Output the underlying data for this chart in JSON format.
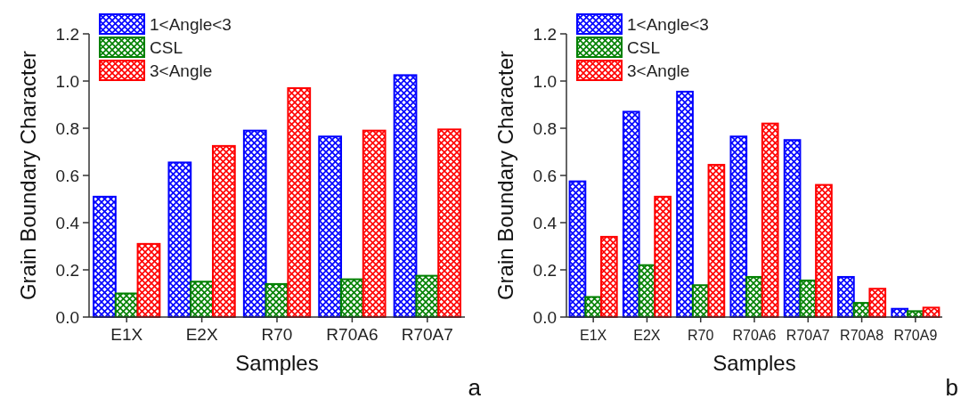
{
  "chart_data": [
    {
      "type": "bar",
      "xlabel": "Samples",
      "ylabel": "Grain Boundary Character",
      "categories": [
        "E1X",
        "E2X",
        "R70",
        "R70A6",
        "R70A7"
      ],
      "ylim": [
        0,
        1.2
      ],
      "yticks": [
        {
          "value": 0,
          "label": "0.0"
        },
        {
          "value": 0.2,
          "label": "0.2"
        },
        {
          "value": 0.4,
          "label": "0.4"
        },
        {
          "value": 0.6,
          "label": "0.6"
        },
        {
          "value": 0.8,
          "label": "0.8"
        },
        {
          "value": 1,
          "label": "1.0"
        },
        {
          "value": 1.2,
          "label": "1.2"
        }
      ],
      "legend": "top left",
      "annotations": [
        "a"
      ],
      "series": [
        {
          "name": "1<Angle<3",
          "color": "#0000ff",
          "values": [
            0.51,
            0.655,
            0.79,
            0.765,
            1.025
          ]
        },
        {
          "name": "CSL",
          "color": "#008000",
          "values": [
            0.1,
            0.15,
            0.14,
            0.16,
            0.175
          ]
        },
        {
          "name": "3<Angle",
          "color": "#ff0000",
          "values": [
            0.31,
            0.725,
            0.97,
            0.79,
            0.795
          ]
        }
      ]
    },
    {
      "type": "bar",
      "xlabel": "Samples",
      "ylabel": "Grain Boundary Character",
      "categories": [
        "E1X",
        "E2X",
        "R70",
        "R70A6",
        "R70A7",
        "R70A8",
        "R70A9"
      ],
      "ylim": [
        0,
        1.2
      ],
      "yticks": [
        {
          "value": 0,
          "label": "0.0"
        },
        {
          "value": 0.2,
          "label": "0.2"
        },
        {
          "value": 0.4,
          "label": "0.4"
        },
        {
          "value": 0.6,
          "label": "0.6"
        },
        {
          "value": 0.8,
          "label": "0.8"
        },
        {
          "value": 1,
          "label": "1.0"
        },
        {
          "value": 1.2,
          "label": "1.2"
        }
      ],
      "legend": "top left",
      "annotations": [
        "b"
      ],
      "series": [
        {
          "name": "1<Angle<3",
          "color": "#0000ff",
          "values": [
            0.575,
            0.87,
            0.955,
            0.765,
            0.75,
            0.17,
            0.035
          ]
        },
        {
          "name": "CSL",
          "color": "#008000",
          "values": [
            0.085,
            0.22,
            0.135,
            0.17,
            0.155,
            0.06,
            0.025
          ]
        },
        {
          "name": "3<Angle",
          "color": "#ff0000",
          "values": [
            0.34,
            0.51,
            0.645,
            0.82,
            0.56,
            0.12,
            0.04
          ]
        }
      ]
    }
  ]
}
